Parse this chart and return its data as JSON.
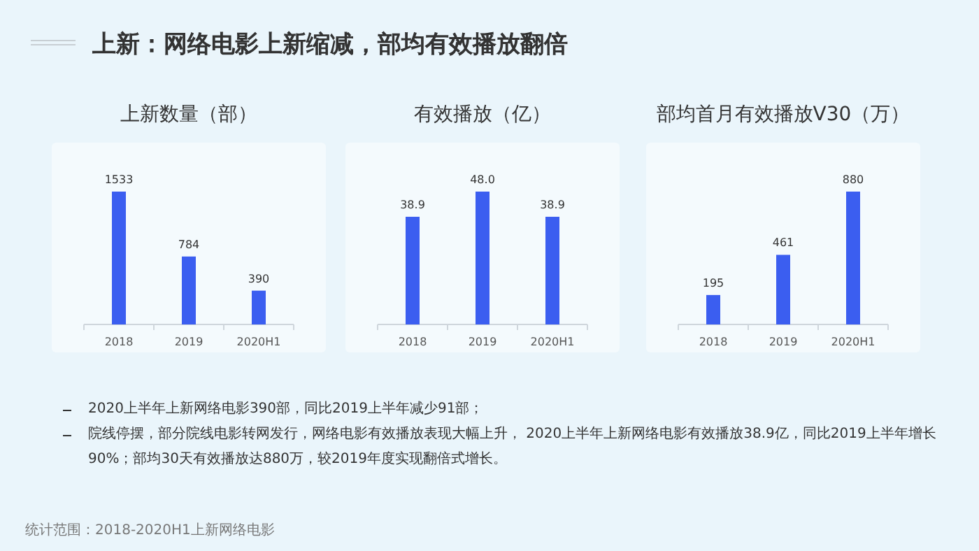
{
  "chart_data": [
    {
      "type": "other",
      "title": "上新：网络电影上新缩减，部均有效播放翻倍",
      "annotations": [
        "2020上半年上新网络电影390部，同比2019上半年减少91部；",
        "院线停摆，部分院线电影转网发行，网络电影有效播放表现大幅上升， 2020上半年上新网络电影有效播放38.9亿，同比2019上半年增长90%；部均30天有效播放达880万，较2019年度实现翻倍式增长。",
        "统计范围：2018-2020H1上新网络电影"
      ]
    },
    {
      "type": "bar",
      "title": "上新数量（部）",
      "categories": [
        "2018",
        "2019",
        "2020H1"
      ],
      "values": [
        1533,
        784,
        390
      ],
      "color": "#3b5ef0",
      "data_labels": true
    },
    {
      "type": "bar",
      "title": "有效播放（亿）",
      "categories": [
        "2018",
        "2019",
        "2020H1"
      ],
      "values": [
        38.9,
        48.0,
        38.9
      ],
      "value_labels": [
        "38.9",
        "48.0",
        "38.9"
      ],
      "color": "#3b5ef0"
    },
    {
      "type": "bar",
      "title": "部均首月有效播放V30（万）",
      "categories": [
        "2018",
        "2019",
        "2020H1"
      ],
      "values": [
        195,
        461,
        880
      ],
      "color": "#3b5ef0",
      "data_labels": true
    }
  ]
}
